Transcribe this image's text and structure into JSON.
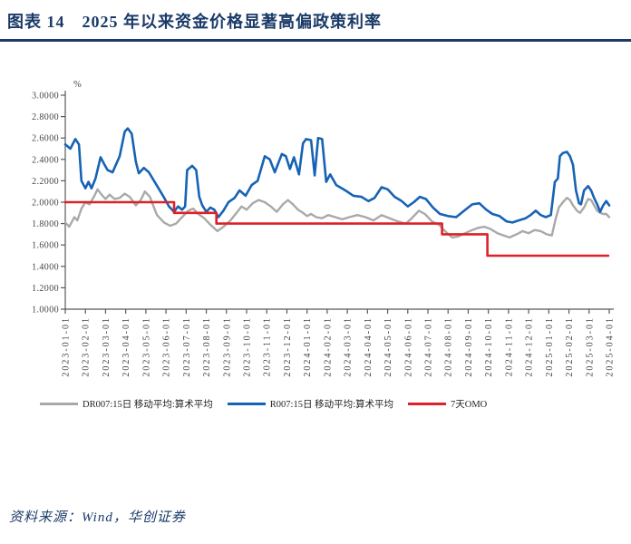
{
  "header": {
    "title": "图表 14　2025 年以来资金价格显著高偏政策利率"
  },
  "footer": {
    "source": "资料来源：Wind，华创证券"
  },
  "colors": {
    "accent_navy": "#1A3A68",
    "r007_blue": "#1663B5",
    "dr007_gray": "#A9A9A9",
    "omo_red": "#DE2128",
    "axis_line": "#595959",
    "tick_text": "#444444"
  },
  "legend": {
    "items": [
      {
        "label": "DR007:15日 移动平均:算术平均",
        "color": "#A9A9A9"
      },
      {
        "label": "R007:15日 移动平均:算术平均",
        "color": "#1663B5"
      },
      {
        "label": "7天OMO",
        "color": "#DE2128"
      }
    ]
  },
  "chart_data": {
    "type": "line",
    "unit_label": "%",
    "ylim": [
      1.0,
      3.0
    ],
    "y_ticks": [
      "3.0000",
      "2.8000",
      "2.6000",
      "2.4000",
      "2.2000",
      "2.0000",
      "1.8000",
      "1.6000",
      "1.4000",
      "1.2000",
      "1.0000"
    ],
    "xlim": [
      0,
      27
    ],
    "x_unit": "months since 2023-01-01",
    "x_tick_labels": [
      "2023-01-01",
      "2023-02-01",
      "2023-03-01",
      "2023-04-01",
      "2023-05-01",
      "2023-06-01",
      "2023-07-01",
      "2023-08-01",
      "2023-09-01",
      "2023-10-01",
      "2023-11-01",
      "2023-12-01",
      "2024-01-01",
      "2024-02-01",
      "2024-03-01",
      "2024-04-01",
      "2024-05-01",
      "2024-06-01",
      "2024-07-01",
      "2024-08-01",
      "2024-09-01",
      "2024-10-01",
      "2024-11-01",
      "2024-12-01",
      "2025-01-01",
      "2025-02-01",
      "2025-03-01",
      "2025-04-01"
    ],
    "grid": false,
    "legend_position": "bottom",
    "series": [
      {
        "name": "DR007:15日 移动平均:算术平均",
        "key": "dr007-line",
        "color": "#A9A9A9",
        "width": 2.4,
        "points": [
          [
            0,
            1.81
          ],
          [
            0.2,
            1.77
          ],
          [
            0.45,
            1.86
          ],
          [
            0.6,
            1.83
          ],
          [
            0.8,
            1.94
          ],
          [
            1,
            2
          ],
          [
            1.2,
            1.98
          ],
          [
            1.45,
            2.06
          ],
          [
            1.6,
            2.12
          ],
          [
            1.8,
            2.07
          ],
          [
            2,
            2.03
          ],
          [
            2.2,
            2.07
          ],
          [
            2.45,
            2.03
          ],
          [
            2.7,
            2.04
          ],
          [
            2.95,
            2.08
          ],
          [
            3.2,
            2.05
          ],
          [
            3.5,
            1.97
          ],
          [
            3.75,
            2.02
          ],
          [
            3.95,
            2.1
          ],
          [
            4.2,
            2.05
          ],
          [
            4.55,
            1.88
          ],
          [
            4.9,
            1.81
          ],
          [
            5.2,
            1.78
          ],
          [
            5.5,
            1.8
          ],
          [
            5.8,
            1.86
          ],
          [
            6.1,
            1.92
          ],
          [
            6.35,
            1.94
          ],
          [
            6.6,
            1.89
          ],
          [
            6.9,
            1.85
          ],
          [
            7.2,
            1.79
          ],
          [
            7.55,
            1.73
          ],
          [
            7.85,
            1.77
          ],
          [
            8.2,
            1.83
          ],
          [
            8.5,
            1.9
          ],
          [
            8.75,
            1.96
          ],
          [
            9,
            1.93
          ],
          [
            9.3,
            1.99
          ],
          [
            9.6,
            2.02
          ],
          [
            9.9,
            2
          ],
          [
            10.2,
            1.96
          ],
          [
            10.5,
            1.91
          ],
          [
            10.8,
            1.98
          ],
          [
            11.05,
            2.02
          ],
          [
            11.3,
            1.98
          ],
          [
            11.55,
            1.93
          ],
          [
            11.8,
            1.9
          ],
          [
            12,
            1.87
          ],
          [
            12.2,
            1.89
          ],
          [
            12.45,
            1.86
          ],
          [
            12.75,
            1.85
          ],
          [
            13.05,
            1.88
          ],
          [
            13.4,
            1.86
          ],
          [
            13.75,
            1.84
          ],
          [
            14.1,
            1.86
          ],
          [
            14.5,
            1.88
          ],
          [
            14.9,
            1.86
          ],
          [
            15.3,
            1.83
          ],
          [
            15.7,
            1.88
          ],
          [
            16.1,
            1.85
          ],
          [
            16.5,
            1.82
          ],
          [
            16.9,
            1.8
          ],
          [
            17.2,
            1.85
          ],
          [
            17.55,
            1.92
          ],
          [
            17.85,
            1.89
          ],
          [
            18.2,
            1.82
          ],
          [
            18.55,
            1.79
          ],
          [
            18.9,
            1.72
          ],
          [
            19.2,
            1.67
          ],
          [
            19.5,
            1.68
          ],
          [
            19.85,
            1.71
          ],
          [
            20.2,
            1.74
          ],
          [
            20.5,
            1.76
          ],
          [
            20.8,
            1.77
          ],
          [
            21.1,
            1.75
          ],
          [
            21.45,
            1.71
          ],
          [
            21.75,
            1.69
          ],
          [
            22.05,
            1.67
          ],
          [
            22.4,
            1.7
          ],
          [
            22.7,
            1.73
          ],
          [
            23,
            1.71
          ],
          [
            23.3,
            1.74
          ],
          [
            23.6,
            1.73
          ],
          [
            23.9,
            1.7
          ],
          [
            24.15,
            1.69
          ],
          [
            24.35,
            1.85
          ],
          [
            24.5,
            1.95
          ],
          [
            24.7,
            2
          ],
          [
            24.9,
            2.04
          ],
          [
            25.05,
            2.02
          ],
          [
            25.2,
            1.97
          ],
          [
            25.4,
            1.92
          ],
          [
            25.55,
            1.9
          ],
          [
            25.75,
            1.95
          ],
          [
            25.95,
            2.03
          ],
          [
            26.1,
            2.02
          ],
          [
            26.25,
            1.97
          ],
          [
            26.4,
            1.92
          ],
          [
            26.55,
            1.9
          ],
          [
            26.7,
            1.89
          ],
          [
            26.85,
            1.89
          ],
          [
            27,
            1.86
          ]
        ]
      },
      {
        "name": "R007:15日 移动平均:算术平均",
        "key": "r007-line",
        "color": "#1663B5",
        "width": 2.6,
        "points": [
          [
            0,
            2.54
          ],
          [
            0.25,
            2.5
          ],
          [
            0.5,
            2.59
          ],
          [
            0.68,
            2.54
          ],
          [
            0.8,
            2.2
          ],
          [
            1,
            2.13
          ],
          [
            1.15,
            2.19
          ],
          [
            1.3,
            2.13
          ],
          [
            1.5,
            2.22
          ],
          [
            1.75,
            2.42
          ],
          [
            1.95,
            2.35
          ],
          [
            2.1,
            2.3
          ],
          [
            2.35,
            2.28
          ],
          [
            2.7,
            2.43
          ],
          [
            2.95,
            2.66
          ],
          [
            3.1,
            2.69
          ],
          [
            3.3,
            2.64
          ],
          [
            3.5,
            2.38
          ],
          [
            3.65,
            2.27
          ],
          [
            3.9,
            2.32
          ],
          [
            4.15,
            2.28
          ],
          [
            4.5,
            2.17
          ],
          [
            4.85,
            2.06
          ],
          [
            5.15,
            1.96
          ],
          [
            5.4,
            1.91
          ],
          [
            5.6,
            1.96
          ],
          [
            5.8,
            1.93
          ],
          [
            5.95,
            1.96
          ],
          [
            6.05,
            2.3
          ],
          [
            6.3,
            2.34
          ],
          [
            6.5,
            2.3
          ],
          [
            6.65,
            2.05
          ],
          [
            6.8,
            1.97
          ],
          [
            7,
            1.91
          ],
          [
            7.2,
            1.95
          ],
          [
            7.4,
            1.93
          ],
          [
            7.6,
            1.86
          ],
          [
            7.85,
            1.92
          ],
          [
            8.1,
            2
          ],
          [
            8.4,
            2.04
          ],
          [
            8.65,
            2.11
          ],
          [
            8.95,
            2.06
          ],
          [
            9.25,
            2.16
          ],
          [
            9.55,
            2.2
          ],
          [
            9.9,
            2.43
          ],
          [
            10.15,
            2.4
          ],
          [
            10.4,
            2.28
          ],
          [
            10.75,
            2.45
          ],
          [
            10.95,
            2.43
          ],
          [
            11.15,
            2.31
          ],
          [
            11.35,
            2.42
          ],
          [
            11.6,
            2.26
          ],
          [
            11.8,
            2.55
          ],
          [
            11.95,
            2.59
          ],
          [
            12.2,
            2.58
          ],
          [
            12.38,
            2.25
          ],
          [
            12.55,
            2.6
          ],
          [
            12.75,
            2.59
          ],
          [
            12.95,
            2.19
          ],
          [
            13.15,
            2.26
          ],
          [
            13.45,
            2.16
          ],
          [
            13.9,
            2.11
          ],
          [
            14.3,
            2.06
          ],
          [
            14.7,
            2.05
          ],
          [
            15.05,
            2.01
          ],
          [
            15.35,
            2.04
          ],
          [
            15.7,
            2.14
          ],
          [
            16,
            2.12
          ],
          [
            16.35,
            2.05
          ],
          [
            16.7,
            2.01
          ],
          [
            17,
            1.96
          ],
          [
            17.3,
            2
          ],
          [
            17.6,
            2.05
          ],
          [
            17.9,
            2.03
          ],
          [
            18.25,
            1.95
          ],
          [
            18.6,
            1.89
          ],
          [
            19,
            1.87
          ],
          [
            19.4,
            1.86
          ],
          [
            19.8,
            1.92
          ],
          [
            20.2,
            1.98
          ],
          [
            20.55,
            1.99
          ],
          [
            20.9,
            1.93
          ],
          [
            21.2,
            1.89
          ],
          [
            21.55,
            1.87
          ],
          [
            21.9,
            1.82
          ],
          [
            22.2,
            1.81
          ],
          [
            22.5,
            1.83
          ],
          [
            22.85,
            1.85
          ],
          [
            23.1,
            1.88
          ],
          [
            23.35,
            1.92
          ],
          [
            23.6,
            1.88
          ],
          [
            23.85,
            1.86
          ],
          [
            24.1,
            1.88
          ],
          [
            24.3,
            2.19
          ],
          [
            24.45,
            2.22
          ],
          [
            24.55,
            2.43
          ],
          [
            24.7,
            2.46
          ],
          [
            24.9,
            2.47
          ],
          [
            25.05,
            2.43
          ],
          [
            25.2,
            2.35
          ],
          [
            25.35,
            2.11
          ],
          [
            25.5,
            1.99
          ],
          [
            25.6,
            1.98
          ],
          [
            25.75,
            2.11
          ],
          [
            25.95,
            2.15
          ],
          [
            26.1,
            2.11
          ],
          [
            26.25,
            2.04
          ],
          [
            26.4,
            1.98
          ],
          [
            26.55,
            1.91
          ],
          [
            26.7,
            1.97
          ],
          [
            26.85,
            2.01
          ],
          [
            27,
            1.97
          ]
        ]
      },
      {
        "name": "7天OMO",
        "key": "omo-line",
        "color": "#DE2128",
        "width": 2.6,
        "points": [
          [
            0,
            2
          ],
          [
            5.4,
            2
          ],
          [
            5.4,
            1.9
          ],
          [
            7.5,
            1.9
          ],
          [
            7.5,
            1.8
          ],
          [
            18.7,
            1.8
          ],
          [
            18.7,
            1.7
          ],
          [
            20.95,
            1.7
          ],
          [
            20.95,
            1.5
          ],
          [
            26.95,
            1.5
          ]
        ]
      }
    ]
  }
}
